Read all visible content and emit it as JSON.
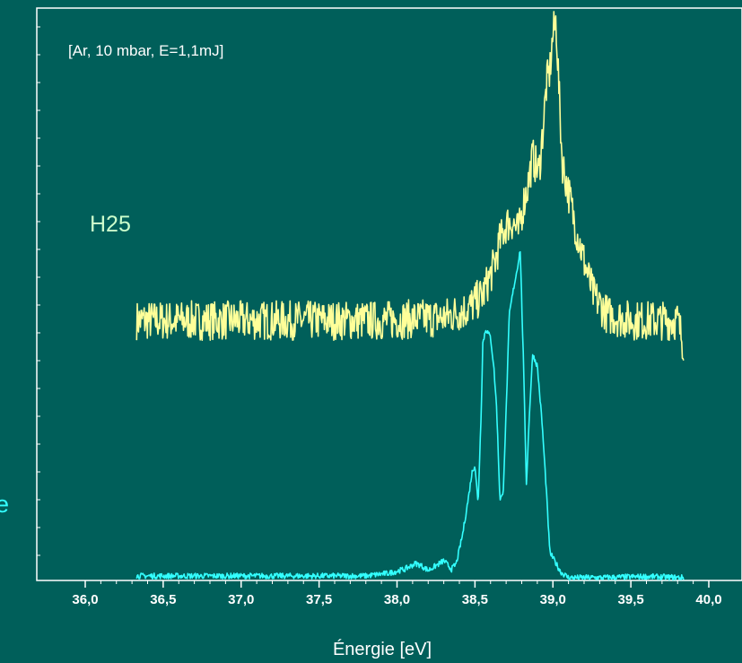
{
  "chart_data": {
    "type": "line",
    "annotation": "[Ar, 10 mbar, E=1,1mJ]",
    "xlabel": "Énergie [eV]",
    "ylabel": "",
    "xlim": [
      36.0,
      40.0
    ],
    "ylim": [
      0,
      100
    ],
    "x_ticks": [
      {
        "value": 36.0,
        "label": "36,0"
      },
      {
        "value": 36.5,
        "label": "36,5"
      },
      {
        "value": 37.0,
        "label": "37,0"
      },
      {
        "value": 37.5,
        "label": "37,5"
      },
      {
        "value": 38.0,
        "label": "38,0"
      },
      {
        "value": 38.5,
        "label": "38,5"
      },
      {
        "value": 39.0,
        "label": "39,0"
      },
      {
        "value": 39.5,
        "label": "39,5"
      },
      {
        "value": 40.0,
        "label": "40,0"
      }
    ],
    "grid": false,
    "colors": {
      "background": "#005f5a",
      "axis": "#ffffff",
      "tick_text": "#ffffff",
      "series_H25": "#ffff99",
      "series_lower": "#33ffff"
    },
    "series": [
      {
        "name": "H25",
        "color": "#ffff99",
        "noise_amplitude": 3.5,
        "points": [
          [
            36.33,
            46.0
          ],
          [
            36.6,
            46.0
          ],
          [
            37.0,
            46.0
          ],
          [
            37.5,
            46.0
          ],
          [
            37.9,
            46.0
          ],
          [
            38.3,
            46.5
          ],
          [
            38.45,
            48.0
          ],
          [
            38.55,
            50.5
          ],
          [
            38.62,
            55.5
          ],
          [
            38.66,
            60.0
          ],
          [
            38.7,
            63.0
          ],
          [
            38.74,
            63.5
          ],
          [
            38.78,
            61.5
          ],
          [
            38.81,
            66.5
          ],
          [
            38.84,
            70.0
          ],
          [
            38.87,
            75.0
          ],
          [
            38.89,
            73.5
          ],
          [
            38.91,
            72.0
          ],
          [
            38.93,
            78.0
          ],
          [
            38.96,
            88.0
          ],
          [
            38.98,
            90.0
          ],
          [
            39.0,
            96.5
          ],
          [
            39.02,
            99.0
          ],
          [
            39.04,
            86.0
          ],
          [
            39.06,
            74.0
          ],
          [
            39.09,
            70.0
          ],
          [
            39.12,
            66.0
          ],
          [
            39.15,
            62.0
          ],
          [
            39.2,
            56.5
          ],
          [
            39.26,
            50.5
          ],
          [
            39.35,
            47.0
          ],
          [
            39.5,
            46.0
          ],
          [
            39.7,
            46.0
          ],
          [
            39.8,
            46.0
          ],
          [
            39.84,
            41.5
          ]
        ]
      },
      {
        "name": "",
        "color": "#33ffff",
        "noise_amplitude": 0.5,
        "points": [
          [
            36.33,
            0.8
          ],
          [
            37.0,
            0.8
          ],
          [
            37.5,
            0.8
          ],
          [
            37.8,
            0.8
          ],
          [
            37.95,
            1.3
          ],
          [
            38.05,
            2.0
          ],
          [
            38.12,
            3.0
          ],
          [
            38.15,
            2.7
          ],
          [
            38.2,
            1.8
          ],
          [
            38.25,
            2.6
          ],
          [
            38.3,
            3.5
          ],
          [
            38.35,
            2.0
          ],
          [
            38.38,
            3.0
          ],
          [
            38.42,
            8.0
          ],
          [
            38.46,
            15.0
          ],
          [
            38.48,
            19.0
          ],
          [
            38.5,
            20.5
          ],
          [
            38.52,
            13.5
          ],
          [
            38.54,
            30.0
          ],
          [
            38.55,
            42.0
          ],
          [
            38.57,
            44.5
          ],
          [
            38.6,
            43.0
          ],
          [
            38.62,
            38.0
          ],
          [
            38.64,
            30.0
          ],
          [
            38.66,
            14.5
          ],
          [
            38.68,
            15.0
          ],
          [
            38.7,
            30.0
          ],
          [
            38.72,
            47.0
          ],
          [
            38.75,
            52.0
          ],
          [
            38.77,
            55.0
          ],
          [
            38.79,
            58.5
          ],
          [
            38.81,
            40.0
          ],
          [
            38.83,
            17.0
          ],
          [
            38.85,
            30.0
          ],
          [
            38.87,
            40.0
          ],
          [
            38.9,
            38.0
          ],
          [
            38.93,
            28.0
          ],
          [
            38.96,
            15.0
          ],
          [
            38.98,
            5.0
          ],
          [
            39.0,
            4.0
          ],
          [
            39.05,
            1.5
          ],
          [
            39.1,
            0.5
          ],
          [
            39.3,
            0.5
          ],
          [
            39.6,
            0.7
          ],
          [
            39.84,
            0.5
          ]
        ]
      }
    ],
    "labels": [
      {
        "text": "H25",
        "color": "#ccffcc"
      },
      {
        "text": "e",
        "color": "#33ffff"
      }
    ]
  }
}
